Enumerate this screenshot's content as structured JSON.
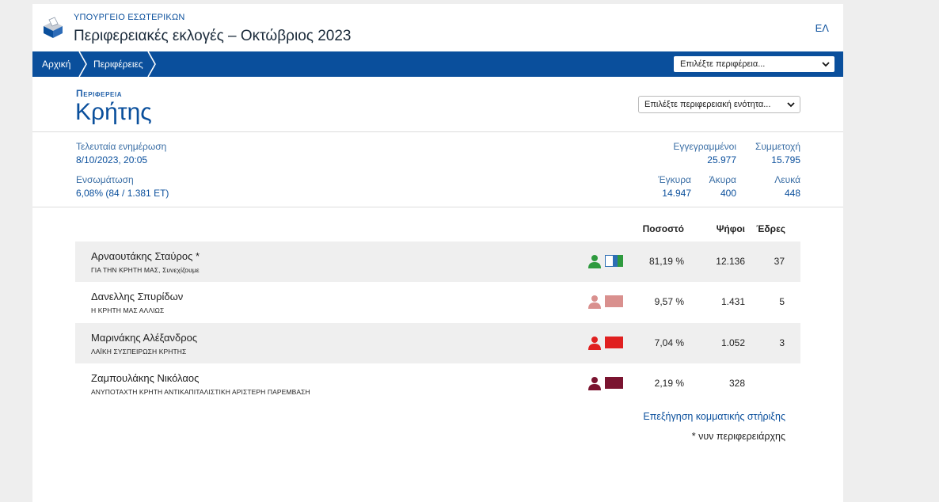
{
  "header": {
    "ministry": "ΥΠΟΥΡΓΕΙΟ ΕΣΩΤΕΡΙΚΩΝ",
    "title": "Περιφερειακές εκλογές – Οκτώβριος 2023",
    "lang": "ΕΛ"
  },
  "nav": {
    "home": "Αρχική",
    "regions": "Περιφέρειες",
    "region_select_placeholder": "Επιλέξτε περιφέρεια..."
  },
  "region": {
    "label": "Περιφερεια",
    "name": "Κρήτης",
    "unit_select_placeholder": "Επιλέξτε περιφερειακή ενότητα..."
  },
  "stats": {
    "last_update_label": "Τελευταία ενημέρωση",
    "last_update_value": "8/10/2023, 20:05",
    "integration_label": "Ενσωμάτωση",
    "integration_value": "6,08% (84 / 1.381 ΕΤ)",
    "registered_label": "Εγγεγραμμένοι",
    "registered_value": "25.977",
    "turnout_label": "Συμμετοχή",
    "turnout_value": "15.795",
    "valid_label": "Έγκυρα",
    "valid_value": "14.947",
    "invalid_label": "Άκυρα",
    "invalid_value": "400",
    "blank_label": "Λευκά",
    "blank_value": "448"
  },
  "table": {
    "headers": {
      "percent": "Ποσοστό",
      "votes": "Ψήφοι",
      "seats": "Έδρες"
    },
    "rows": [
      {
        "name": "Αρναουτάκης Σταύρος *",
        "party": "ΓΙΑ ΤΗΝ ΚΡΗΤΗ ΜΑΣ, Συνεχίζουμε",
        "percent": "81,19 %",
        "votes": "12.136",
        "seats": "37",
        "color": "#2e9a3e"
      },
      {
        "name": "Δανελλης Σπυρίδων",
        "party": "Η ΚΡΗΤΗ ΜΑΣ ΑΛΛΙΩΣ",
        "percent": "9,57 %",
        "votes": "1.431",
        "seats": "5",
        "color": "#d9908e"
      },
      {
        "name": "Μαρινάκης Αλέξανδρος",
        "party": "ΛΑΪΚΗ ΣΥΣΠΕΙΡΩΣΗ ΚΡΗΤΗΣ",
        "percent": "7,04 %",
        "votes": "1.052",
        "seats": "3",
        "color": "#e02020"
      },
      {
        "name": "Ζαμπουλάκης Νικόλαος",
        "party": "ΑΝΥΠΟΤΑΧΤΗ ΚΡΗΤΗ ΑΝΤΙΚΑΠΙΤΑΛΙΣΤΙΚΗ ΑΡΙΣΤΕΡΗ ΠΑΡΕΜΒΑΣΗ",
        "percent": "2,19 %",
        "votes": "328",
        "seats": "",
        "color": "#7a1430"
      }
    ]
  },
  "footer": {
    "explain_link": "Επεξήγηση κομματικής στήριξης",
    "note": "* νυν περιφερειάρχης"
  }
}
